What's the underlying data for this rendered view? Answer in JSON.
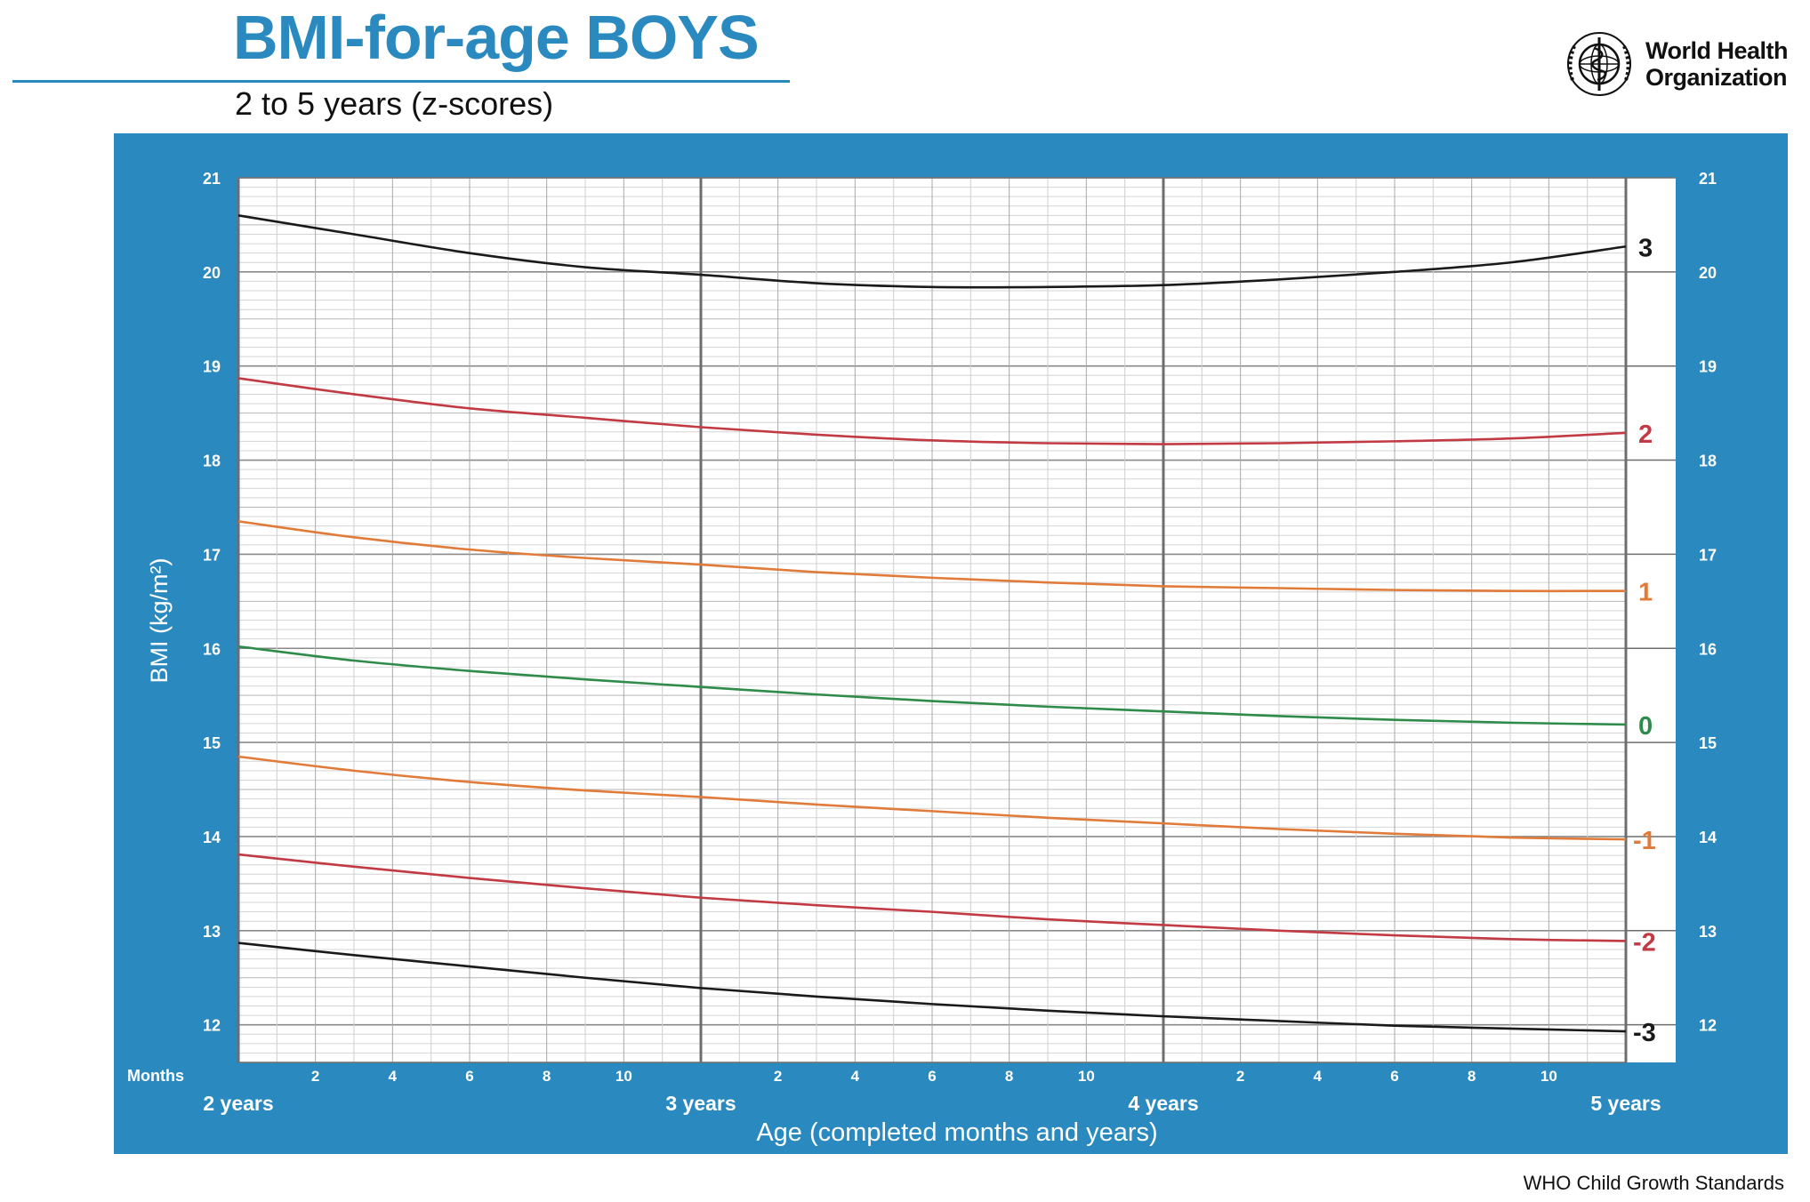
{
  "header": {
    "title": "BMI-for-age BOYS",
    "subtitle": "2 to 5 years (z-scores)",
    "org_line1": "World Health",
    "org_line2": "Organization"
  },
  "footer": {
    "text": "WHO Child Growth Standards"
  },
  "colors": {
    "frame": "#2a8abf",
    "z3": "#1a1a1a",
    "z2": "#c23a44",
    "z1": "#e07b3a",
    "z0": "#2e8b4a"
  },
  "chart_data": {
    "type": "line",
    "title": "BMI-for-age BOYS",
    "subtitle": "2 to 5 years (z-scores)",
    "xlabel": "Age (completed months and years)",
    "ylabel": "BMI (kg/m²)",
    "xlim": [
      24,
      60
    ],
    "ylim": [
      11.6,
      21
    ],
    "grid": true,
    "months_label": "Months",
    "y_ticks": [
      12,
      13,
      14,
      15,
      16,
      17,
      18,
      19,
      20,
      21
    ],
    "x_month_ticks": [
      {
        "x": 26,
        "label": "2"
      },
      {
        "x": 28,
        "label": "4"
      },
      {
        "x": 30,
        "label": "6"
      },
      {
        "x": 32,
        "label": "8"
      },
      {
        "x": 34,
        "label": "10"
      },
      {
        "x": 38,
        "label": "2"
      },
      {
        "x": 40,
        "label": "4"
      },
      {
        "x": 42,
        "label": "6"
      },
      {
        "x": 44,
        "label": "8"
      },
      {
        "x": 46,
        "label": "10"
      },
      {
        "x": 50,
        "label": "2"
      },
      {
        "x": 52,
        "label": "4"
      },
      {
        "x": 54,
        "label": "6"
      },
      {
        "x": 56,
        "label": "8"
      },
      {
        "x": 58,
        "label": "10"
      }
    ],
    "x_year_ticks": [
      {
        "x": 24,
        "label": "2 years"
      },
      {
        "x": 36,
        "label": "3 years"
      },
      {
        "x": 48,
        "label": "4 years"
      },
      {
        "x": 60,
        "label": "5 years"
      }
    ],
    "x": [
      24,
      27,
      30,
      33,
      36,
      39,
      42,
      45,
      48,
      51,
      54,
      57,
      60
    ],
    "series": [
      {
        "name": "3",
        "color": "#1a1a1a",
        "values": [
          20.6,
          20.4,
          20.2,
          20.05,
          19.97,
          19.88,
          19.84,
          19.84,
          19.86,
          19.92,
          20.0,
          20.1,
          20.27
        ]
      },
      {
        "name": "2",
        "color": "#c23a44",
        "values": [
          18.87,
          18.7,
          18.55,
          18.45,
          18.35,
          18.27,
          18.21,
          18.18,
          18.17,
          18.18,
          18.2,
          18.23,
          18.29
        ]
      },
      {
        "name": "1",
        "color": "#e07b3a",
        "values": [
          17.35,
          17.18,
          17.05,
          16.96,
          16.89,
          16.81,
          16.75,
          16.7,
          16.66,
          16.64,
          16.62,
          16.61,
          16.61
        ]
      },
      {
        "name": "0",
        "color": "#2e8b4a",
        "values": [
          16.02,
          15.87,
          15.76,
          15.67,
          15.59,
          15.51,
          15.44,
          15.38,
          15.33,
          15.28,
          15.24,
          15.21,
          15.19
        ]
      },
      {
        "name": "-1",
        "color": "#e07b3a",
        "values": [
          14.85,
          14.7,
          14.58,
          14.49,
          14.42,
          14.34,
          14.27,
          14.2,
          14.14,
          14.08,
          14.03,
          13.99,
          13.97
        ]
      },
      {
        "name": "-2",
        "color": "#c23a44",
        "values": [
          13.81,
          13.68,
          13.56,
          13.45,
          13.35,
          13.27,
          13.2,
          13.12,
          13.06,
          13.0,
          12.95,
          12.91,
          12.89
        ]
      },
      {
        "name": "-3",
        "color": "#1a1a1a",
        "values": [
          12.87,
          12.74,
          12.62,
          12.5,
          12.39,
          12.3,
          12.22,
          12.15,
          12.09,
          12.04,
          11.99,
          11.96,
          11.93
        ]
      }
    ]
  }
}
